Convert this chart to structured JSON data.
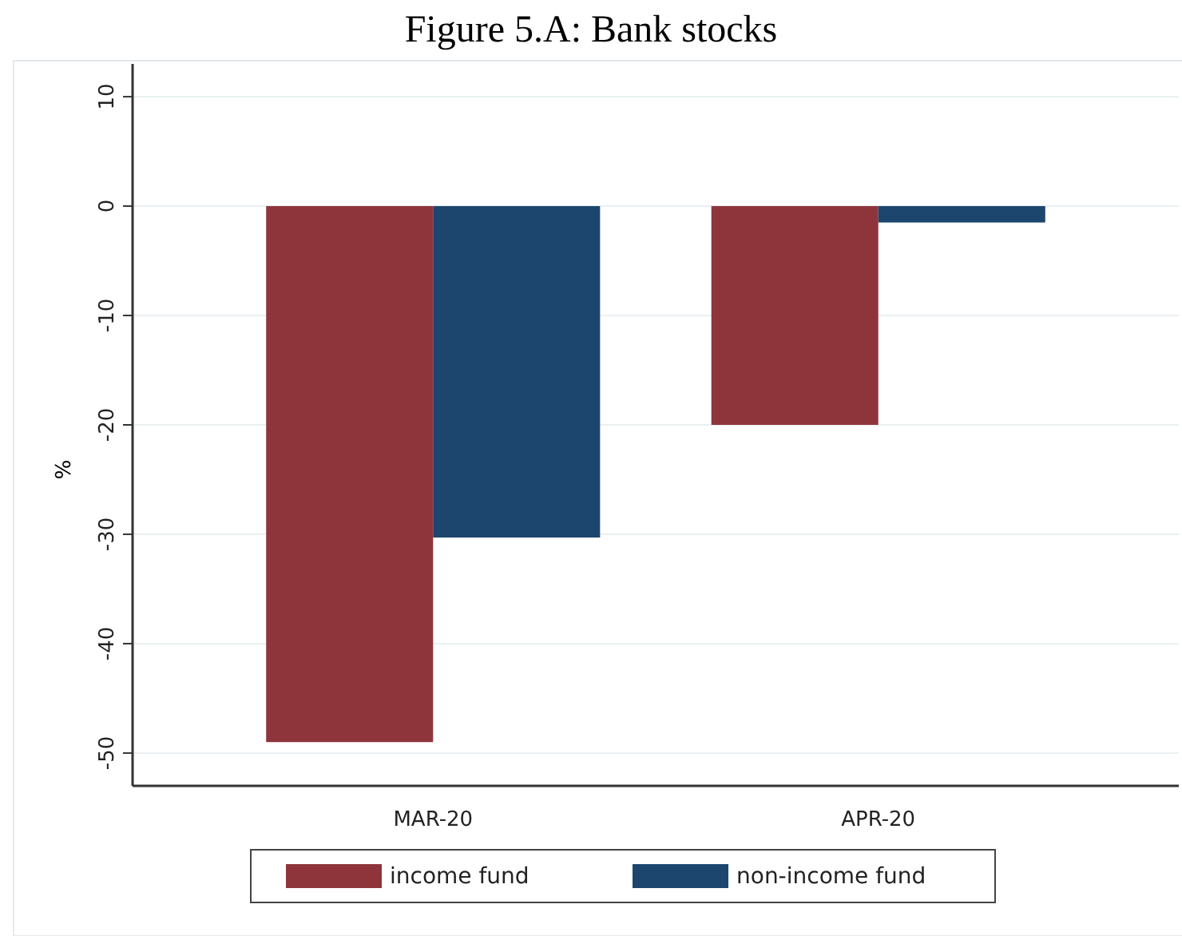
{
  "chart_data": {
    "type": "bar",
    "title": "Figure 5.A: Bank stocks",
    "ylabel": "%",
    "categories": [
      "MAR-20",
      "APR-20"
    ],
    "series": [
      {
        "name": "income fund",
        "color": "#8e353b",
        "values": [
          -49,
          -20
        ]
      },
      {
        "name": "non-income fund",
        "color": "#1d466e",
        "values": [
          -30.3,
          -1.5
        ]
      }
    ],
    "ylim": [
      -53,
      13
    ],
    "yticks": [
      10,
      0,
      -10,
      -20,
      -30,
      -40,
      -50
    ],
    "grid": "y",
    "legend": "bottom"
  }
}
